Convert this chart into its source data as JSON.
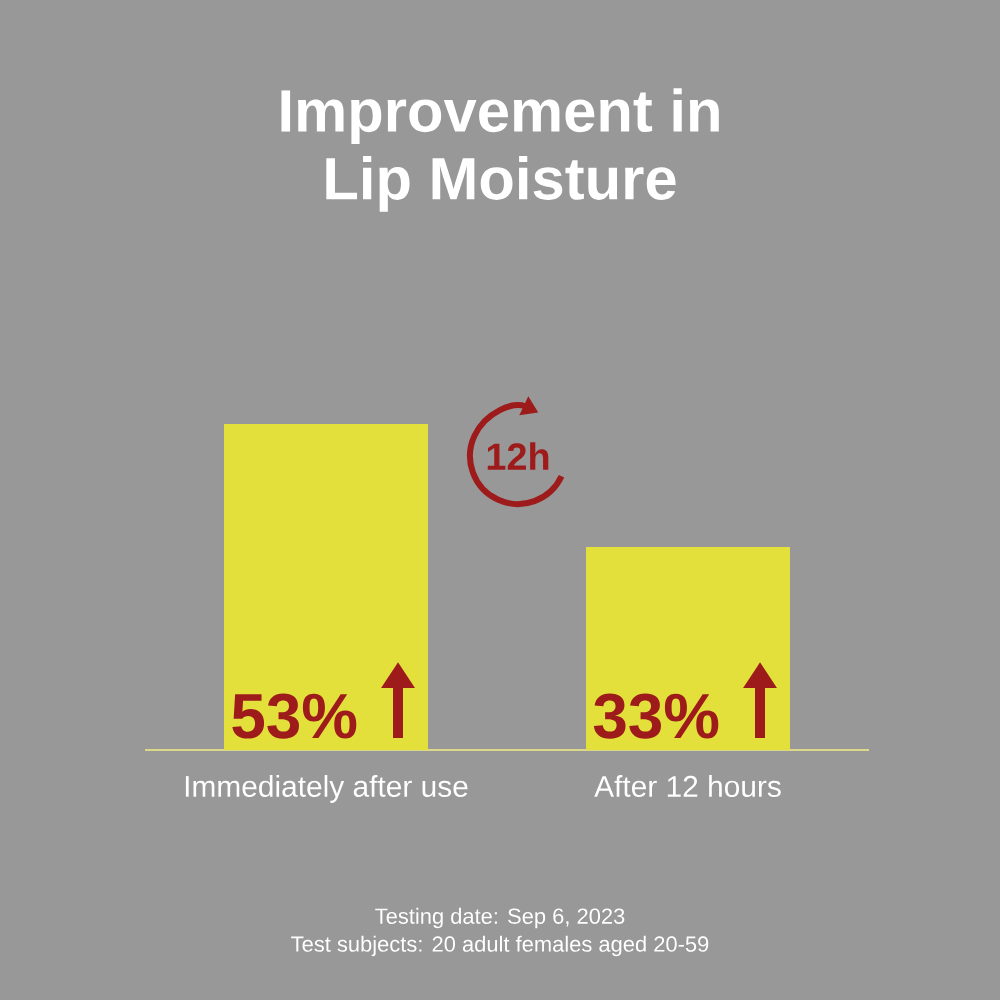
{
  "chart_data": {
    "type": "bar",
    "title": "Improvement in Lip Moisture",
    "categories": [
      "Immediately after use",
      "After 12 hours"
    ],
    "values": [
      53,
      33
    ],
    "value_labels": [
      "53%",
      "33%"
    ],
    "color": "#e3df3b",
    "annotations": [
      "12h",
      "Testing date: Sep 6, 2023",
      "Test subjects: 20 adult females aged 20-59"
    ]
  }
}
